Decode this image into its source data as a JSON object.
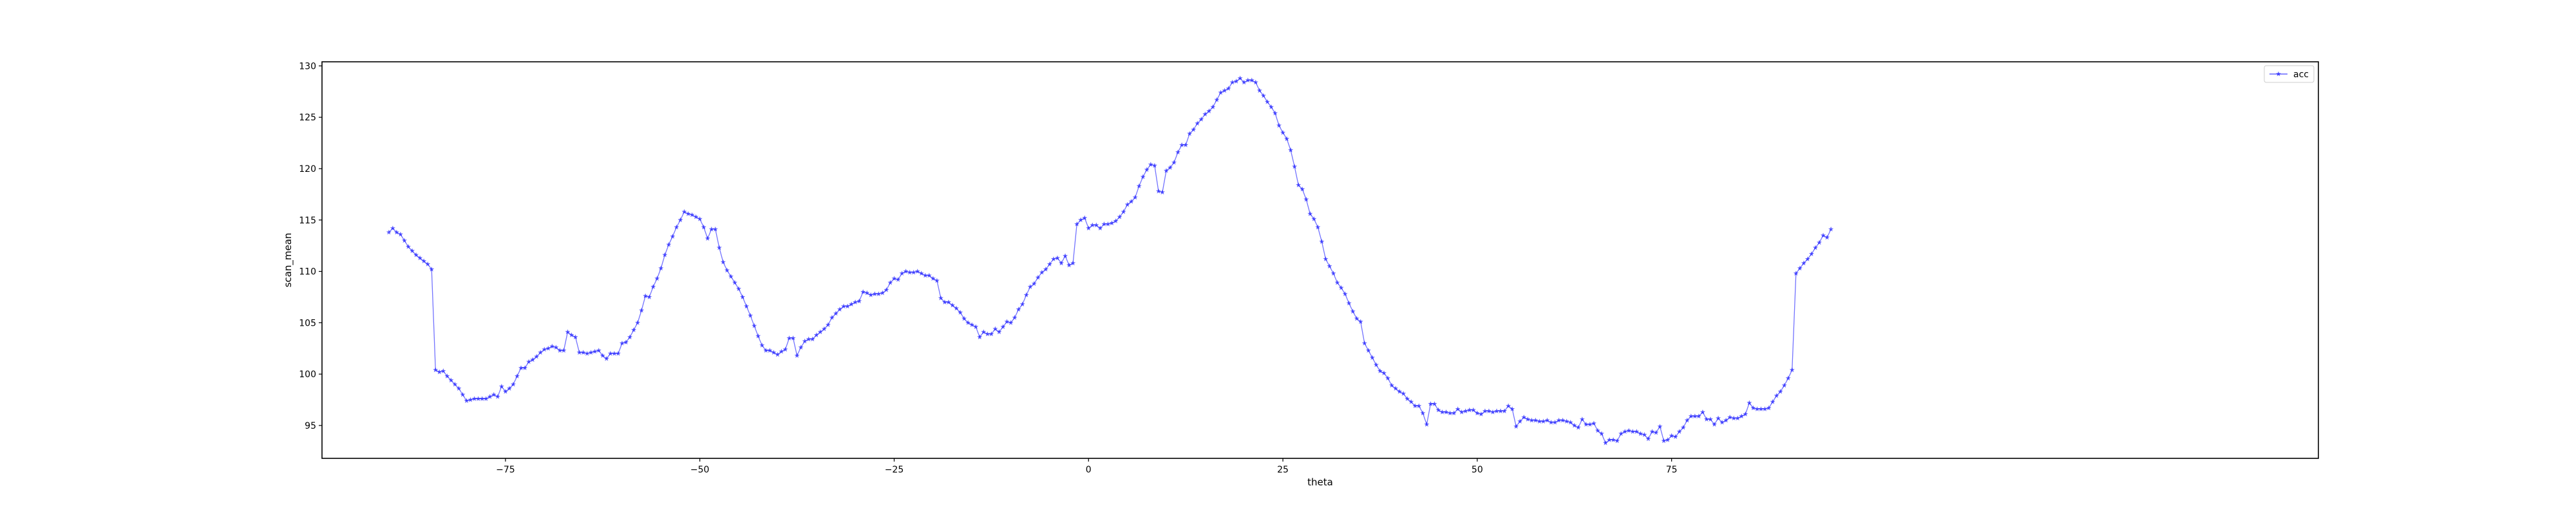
{
  "chart_data": {
    "type": "line",
    "xlabel": "theta",
    "ylabel": "scan_mean",
    "xlim": [
      -98.6,
      158.2
    ],
    "ylim": [
      91.8,
      130.4
    ],
    "x_ticks": [
      {
        "value": -75,
        "label": "−75"
      },
      {
        "value": -50,
        "label": "−50"
      },
      {
        "value": -25,
        "label": "−25"
      },
      {
        "value": 0,
        "label": "0"
      },
      {
        "value": 25,
        "label": "25"
      },
      {
        "value": 50,
        "label": "50"
      },
      {
        "value": 75,
        "label": "75"
      }
    ],
    "y_ticks": [
      {
        "value": 95,
        "label": "95"
      },
      {
        "value": 100,
        "label": "100"
      },
      {
        "value": 105,
        "label": "105"
      },
      {
        "value": 110,
        "label": "110"
      },
      {
        "value": 115,
        "label": "115"
      },
      {
        "value": 120,
        "label": "120"
      },
      {
        "value": 125,
        "label": "125"
      },
      {
        "value": 130,
        "label": "130"
      }
    ],
    "grid": false,
    "legend_position": "top-right",
    "series": [
      {
        "name": "acc",
        "color": "#0000ff",
        "marker": "star",
        "x_start": -90,
        "x_step": 0.5,
        "values": [
          113.8,
          114.2,
          113.8,
          113.6,
          113.0,
          112.4,
          112.0,
          111.6,
          111.3,
          111.0,
          110.7,
          110.2,
          100.4,
          100.2,
          100.3,
          99.8,
          99.4,
          99.0,
          98.6,
          98.0,
          97.4,
          97.5,
          97.6,
          97.6,
          97.6,
          97.6,
          97.8,
          98.0,
          97.8,
          98.8,
          98.3,
          98.6,
          99.0,
          99.8,
          100.6,
          100.6,
          101.2,
          101.4,
          101.7,
          102.1,
          102.4,
          102.5,
          102.7,
          102.6,
          102.3,
          102.3,
          104.1,
          103.8,
          103.6,
          102.1,
          102.1,
          102.0,
          102.1,
          102.2,
          102.3,
          101.8,
          101.5,
          102.0,
          102.0,
          102.0,
          103.0,
          103.1,
          103.6,
          104.3,
          105.0,
          106.2,
          107.6,
          107.5,
          108.5,
          109.3,
          110.3,
          111.6,
          112.6,
          113.4,
          114.3,
          115.0,
          115.8,
          115.6,
          115.5,
          115.3,
          115.1,
          114.3,
          113.2,
          114.1,
          114.1,
          112.3,
          110.9,
          110.1,
          109.5,
          108.9,
          108.3,
          107.5,
          106.6,
          105.7,
          104.7,
          103.7,
          102.8,
          102.3,
          102.3,
          102.1,
          101.9,
          102.2,
          102.4,
          103.5,
          103.5,
          101.8,
          102.6,
          103.2,
          103.4,
          103.4,
          103.8,
          104.1,
          104.4,
          104.8,
          105.5,
          105.9,
          106.3,
          106.6,
          106.6,
          106.8,
          107.0,
          107.1,
          108.0,
          107.9,
          107.7,
          107.8,
          107.8,
          107.9,
          108.2,
          108.9,
          109.3,
          109.2,
          109.8,
          110.0,
          109.9,
          109.9,
          110.0,
          109.8,
          109.6,
          109.6,
          109.3,
          109.1,
          107.4,
          107.0,
          107.0,
          106.7,
          106.4,
          106.0,
          105.4,
          105.0,
          104.8,
          104.6,
          103.6,
          104.1,
          103.9,
          103.9,
          104.4,
          104.1,
          104.6,
          105.1,
          105.0,
          105.5,
          106.3,
          106.8,
          107.7,
          108.5,
          108.8,
          109.4,
          109.9,
          110.2,
          110.7,
          111.2,
          111.3,
          110.8,
          111.5,
          110.6,
          110.8,
          114.6,
          115.0,
          115.2,
          114.2,
          114.5,
          114.5,
          114.2,
          114.6,
          114.6,
          114.7,
          114.9,
          115.3,
          115.8,
          116.5,
          116.8,
          117.2,
          118.3,
          119.2,
          119.9,
          120.4,
          120.3,
          117.8,
          117.7,
          119.8,
          120.1,
          120.6,
          121.6,
          122.3,
          122.3,
          123.4,
          123.8,
          124.4,
          124.8,
          125.3,
          125.6,
          126.0,
          126.7,
          127.4,
          127.6,
          127.8,
          128.4,
          128.5,
          128.8,
          128.4,
          128.6,
          128.6,
          128.4,
          127.6,
          127.1,
          126.5,
          126.0,
          125.4,
          124.2,
          123.5,
          122.9,
          121.8,
          120.2,
          118.4,
          118.0,
          117.0,
          115.6,
          115.1,
          114.3,
          112.9,
          111.2,
          110.5,
          109.8,
          108.9,
          108.4,
          107.8,
          106.9,
          106.1,
          105.4,
          105.1,
          103.0,
          102.3,
          101.6,
          100.9,
          100.3,
          100.1,
          99.6,
          98.9,
          98.6,
          98.3,
          98.1,
          97.6,
          97.3,
          96.9,
          96.9,
          96.2,
          95.1,
          97.1,
          97.1,
          96.5,
          96.3,
          96.3,
          96.2,
          96.2,
          96.6,
          96.3,
          96.4,
          96.5,
          96.5,
          96.2,
          96.1,
          96.4,
          96.4,
          96.3,
          96.4,
          96.4,
          96.4,
          96.9,
          96.6,
          94.9,
          95.4,
          95.8,
          95.6,
          95.5,
          95.5,
          95.4,
          95.4,
          95.5,
          95.3,
          95.3,
          95.5,
          95.5,
          95.4,
          95.3,
          95.0,
          94.8,
          95.6,
          95.1,
          95.1,
          95.2,
          94.5,
          94.2,
          93.3,
          93.6,
          93.6,
          93.5,
          94.2,
          94.4,
          94.5,
          94.4,
          94.4,
          94.2,
          94.1,
          93.7,
          94.4,
          94.3,
          94.9,
          93.5,
          93.6,
          94.0,
          93.9,
          94.4,
          94.8,
          95.5,
          95.9,
          95.9,
          95.9,
          96.3,
          95.6,
          95.6,
          95.1,
          95.7,
          95.3,
          95.5,
          95.8,
          95.7,
          95.7,
          95.9,
          96.1,
          97.2,
          96.7,
          96.6,
          96.6,
          96.6,
          96.7,
          97.3,
          97.9,
          98.3,
          98.9,
          99.6,
          100.4,
          109.8,
          110.3,
          110.8,
          111.2,
          111.7,
          112.3,
          112.8,
          113.5,
          113.3,
          114.1
        ]
      }
    ]
  }
}
